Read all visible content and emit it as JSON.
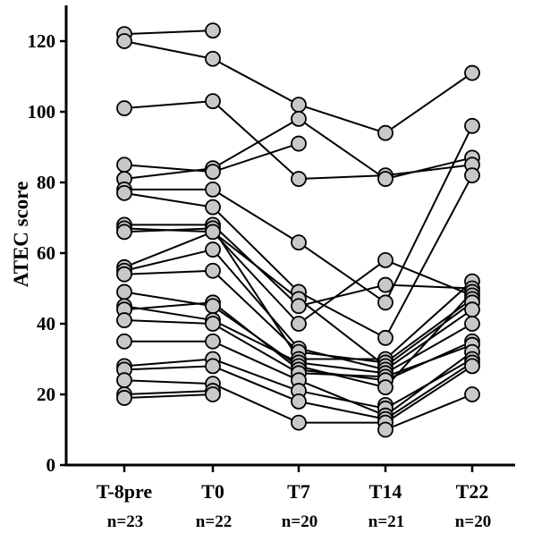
{
  "chart_data": {
    "type": "line",
    "ylabel": "ATEC score",
    "xlabel": "",
    "ylim": [
      0,
      125
    ],
    "yticks": [
      0,
      20,
      40,
      60,
      80,
      100,
      120
    ],
    "categories": [
      "T-8pre",
      "T0",
      "T7",
      "T14",
      "T22"
    ],
    "sample_sizes": [
      "n=23",
      "n=22",
      "n=20",
      "n=21",
      "n=20"
    ],
    "grid": false,
    "legend": "none",
    "colors": {
      "marker_fill": "#c8c8c8",
      "line": "#000000"
    },
    "points": [
      [
        122,
        120,
        101,
        85,
        81,
        78,
        77,
        68,
        67,
        66,
        56,
        55,
        54,
        49,
        45,
        44,
        41,
        35,
        28,
        27,
        24,
        20,
        19
      ],
      [
        123,
        115,
        103,
        84,
        83,
        78,
        73,
        68,
        67,
        66,
        61,
        55,
        46,
        45,
        41,
        40,
        35,
        30,
        28,
        23,
        21,
        20
      ],
      [
        102,
        98,
        91,
        81,
        63,
        49,
        47,
        45,
        40,
        33,
        32,
        30,
        29,
        28,
        27,
        26,
        24,
        21,
        18,
        12
      ],
      [
        94,
        82,
        81,
        58,
        51,
        46,
        36,
        30,
        29,
        28,
        27,
        26,
        25,
        24,
        22,
        17,
        16,
        14,
        13,
        12,
        10
      ],
      [
        111,
        96,
        87,
        85,
        82,
        52,
        50,
        49,
        48,
        47,
        46,
        44,
        40,
        35,
        34,
        32,
        30,
        29,
        28,
        20
      ]
    ],
    "series": [
      {
        "values": [
          122,
          123,
          null,
          null,
          null
        ]
      },
      {
        "values": [
          120,
          115,
          102,
          94,
          111
        ]
      },
      {
        "values": [
          101,
          103,
          81,
          82,
          85
        ]
      },
      {
        "values": [
          85,
          83,
          91,
          null,
          null
        ]
      },
      {
        "values": [
          81,
          84,
          98,
          81,
          87
        ]
      },
      {
        "values": [
          78,
          78,
          63,
          46,
          96
        ]
      },
      {
        "values": [
          77,
          73,
          49,
          36,
          82
        ]
      },
      {
        "values": [
          68,
          68,
          45,
          51,
          50
        ]
      },
      {
        "values": [
          67,
          66,
          40,
          58,
          48
        ]
      },
      {
        "values": [
          66,
          67,
          30,
          30,
          52
        ]
      },
      {
        "values": [
          56,
          66,
          47,
          28,
          46
        ]
      },
      {
        "values": [
          55,
          61,
          33,
          27,
          44
        ]
      },
      {
        "values": [
          54,
          55,
          32,
          29,
          47
        ]
      },
      {
        "values": [
          49,
          45,
          28,
          22,
          49
        ]
      },
      {
        "values": [
          45,
          41,
          29,
          26,
          40
        ]
      },
      {
        "values": [
          44,
          46,
          27,
          24,
          35
        ]
      },
      {
        "values": [
          41,
          40,
          26,
          25,
          34
        ]
      },
      {
        "values": [
          35,
          35,
          24,
          14,
          32
        ]
      },
      {
        "values": [
          28,
          30,
          21,
          16,
          30
        ]
      },
      {
        "values": [
          27,
          28,
          18,
          13,
          29
        ]
      },
      {
        "values": [
          24,
          23,
          12,
          12,
          28
        ]
      },
      {
        "values": [
          20,
          21,
          null,
          10,
          20
        ]
      },
      {
        "values": [
          19,
          20,
          null,
          17,
          null
        ]
      }
    ]
  }
}
